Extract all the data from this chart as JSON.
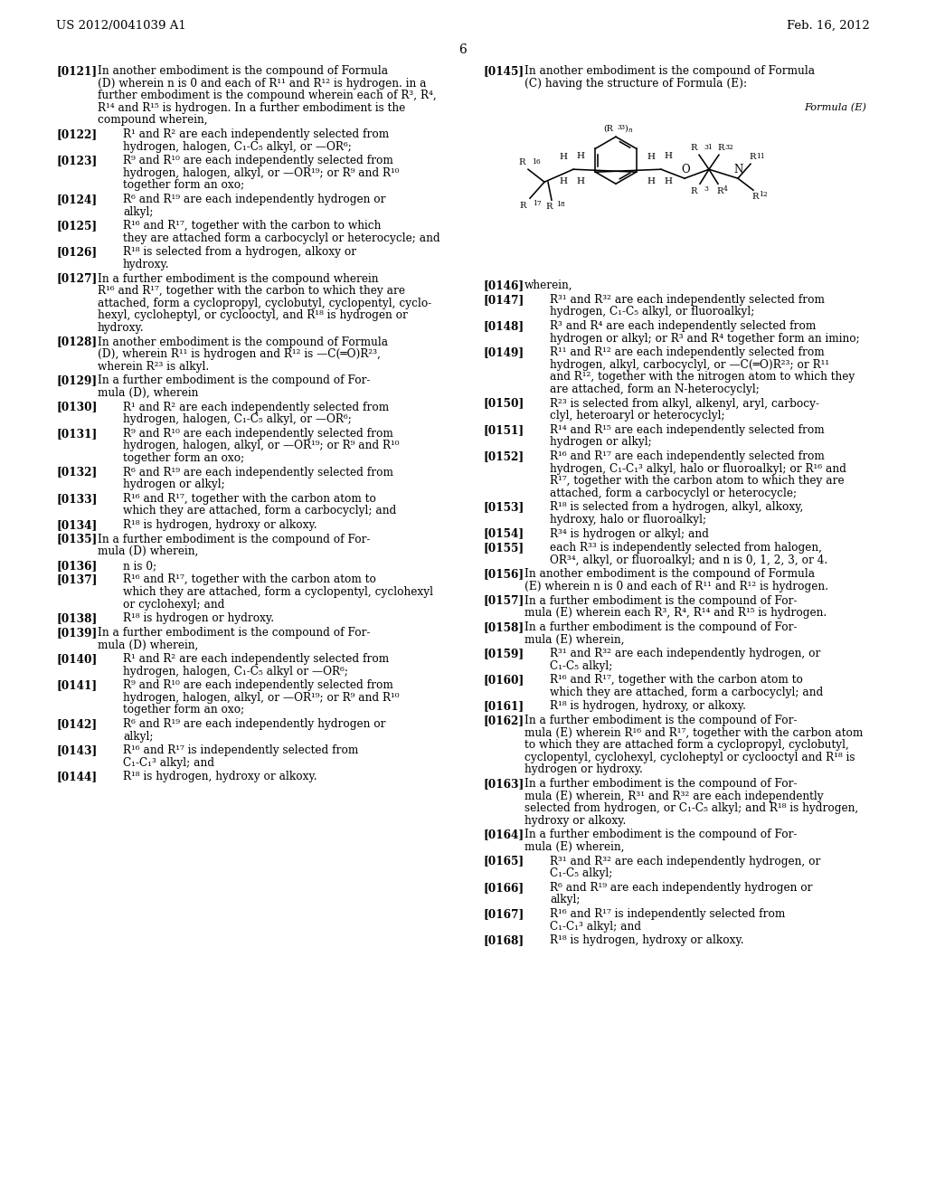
{
  "bg_color": "#ffffff",
  "header_left": "US 2012/0041039 A1",
  "header_right": "Feb. 16, 2012",
  "page_number": "6",
  "formula_label": "Formula (E)",
  "left_paragraphs": [
    {
      "tag": "[0121]",
      "indent": 0,
      "lines": [
        "In another embodiment is the compound of Formula",
        "(D) wherein n is 0 and each of R¹¹ and R¹² is hydrogen. in a",
        "further embodiment is the compound wherein each of R³, R⁴,",
        "R¹⁴ and R¹⁵ is hydrogen. In a further embodiment is the",
        "compound wherein,"
      ]
    },
    {
      "tag": "[0122]",
      "indent": 1,
      "lines": [
        "R¹ and R² are each independently selected from",
        "hydrogen, halogen, C₁-C₅ alkyl, or —OR⁶;"
      ]
    },
    {
      "tag": "[0123]",
      "indent": 1,
      "lines": [
        "R⁹ and R¹⁰ are each independently selected from",
        "hydrogen, halogen, alkyl, or —OR¹⁹; or R⁹ and R¹⁰",
        "together form an oxo;"
      ]
    },
    {
      "tag": "[0124]",
      "indent": 1,
      "lines": [
        "R⁶ and R¹⁹ are each independently hydrogen or",
        "alkyl;"
      ]
    },
    {
      "tag": "[0125]",
      "indent": 1,
      "lines": [
        "R¹⁶ and R¹⁷, together with the carbon to which",
        "they are attached form a carbocyclyl or heterocycle; and"
      ]
    },
    {
      "tag": "[0126]",
      "indent": 1,
      "lines": [
        "R¹⁸ is selected from a hydrogen, alkoxy or",
        "hydroxy."
      ]
    },
    {
      "tag": "[0127]",
      "indent": 0,
      "lines": [
        "In a further embodiment is the compound wherein",
        "R¹⁶ and R¹⁷, together with the carbon to which they are",
        "attached, form a cyclopropyl, cyclobutyl, cyclopentyl, cyclo-",
        "hexyl, cycloheptyl, or cyclooctyl, and R¹⁸ is hydrogen or",
        "hydroxy."
      ]
    },
    {
      "tag": "[0128]",
      "indent": 0,
      "lines": [
        "In another embodiment is the compound of Formula",
        "(D), wherein R¹¹ is hydrogen and R¹² is —C(═O)R²³,",
        "wherein R²³ is alkyl."
      ]
    },
    {
      "tag": "[0129]",
      "indent": 0,
      "lines": [
        "In a further embodiment is the compound of For-",
        "mula (D), wherein"
      ]
    },
    {
      "tag": "[0130]",
      "indent": 1,
      "lines": [
        "R¹ and R² are each independently selected from",
        "hydrogen, halogen, C₁-C₅ alkyl, or —OR⁶;"
      ]
    },
    {
      "tag": "[0131]",
      "indent": 1,
      "lines": [
        "R⁹ and R¹⁰ are each independently selected from",
        "hydrogen, halogen, alkyl, or —OR¹⁹; or R⁹ and R¹⁰",
        "together form an oxo;"
      ]
    },
    {
      "tag": "[0132]",
      "indent": 1,
      "lines": [
        "R⁶ and R¹⁹ are each independently selected from",
        "hydrogen or alkyl;"
      ]
    },
    {
      "tag": "[0133]",
      "indent": 1,
      "lines": [
        "R¹⁶ and R¹⁷, together with the carbon atom to",
        "which they are attached, form a carbocyclyl; and"
      ]
    },
    {
      "tag": "[0134]",
      "indent": 1,
      "lines": [
        "R¹⁸ is hydrogen, hydroxy or alkoxy."
      ]
    },
    {
      "tag": "[0135]",
      "indent": 0,
      "lines": [
        "In a further embodiment is the compound of For-",
        "mula (D) wherein,"
      ]
    },
    {
      "tag": "[0136]",
      "indent": 1,
      "lines": [
        "n is 0;"
      ]
    },
    {
      "tag": "[0137]",
      "indent": 1,
      "lines": [
        "R¹⁶ and R¹⁷, together with the carbon atom to",
        "which they are attached, form a cyclopentyl, cyclohexyl",
        "or cyclohexyl; and"
      ]
    },
    {
      "tag": "[0138]",
      "indent": 1,
      "lines": [
        "R¹⁸ is hydrogen or hydroxy."
      ]
    },
    {
      "tag": "[0139]",
      "indent": 0,
      "lines": [
        "In a further embodiment is the compound of For-",
        "mula (D) wherein,"
      ]
    },
    {
      "tag": "[0140]",
      "indent": 1,
      "lines": [
        "R¹ and R² are each independently selected from",
        "hydrogen, halogen, C₁-C₅ alkyl or —OR⁶;"
      ]
    },
    {
      "tag": "[0141]",
      "indent": 1,
      "lines": [
        "R⁹ and R¹⁰ are each independently selected from",
        "hydrogen, halogen, alkyl, or —OR¹⁹; or R⁹ and R¹⁰",
        "together form an oxo;"
      ]
    },
    {
      "tag": "[0142]",
      "indent": 1,
      "lines": [
        "R⁶ and R¹⁹ are each independently hydrogen or",
        "alkyl;"
      ]
    },
    {
      "tag": "[0143]",
      "indent": 1,
      "lines": [
        "R¹⁶ and R¹⁷ is independently selected from",
        "C₁-C₁³ alkyl; and"
      ]
    },
    {
      "tag": "[0144]",
      "indent": 1,
      "lines": [
        "R¹⁸ is hydrogen, hydroxy or alkoxy."
      ]
    }
  ],
  "right_paragraphs": [
    {
      "tag": "[0145]",
      "indent": 0,
      "lines": [
        "In another embodiment is the compound of Formula",
        "(C) having the structure of Formula (E):"
      ]
    },
    {
      "tag": "[0146]",
      "indent": 0,
      "lines": [
        "wherein,"
      ]
    },
    {
      "tag": "[0147]",
      "indent": 1,
      "lines": [
        "R³¹ and R³² are each independently selected from",
        "hydrogen, C₁-C₅ alkyl, or fluoroalkyl;"
      ]
    },
    {
      "tag": "[0148]",
      "indent": 1,
      "lines": [
        "R³ and R⁴ are each independently selected from",
        "hydrogen or alkyl; or R³ and R⁴ together form an imino;"
      ]
    },
    {
      "tag": "[0149]",
      "indent": 1,
      "lines": [
        "R¹¹ and R¹² are each independently selected from",
        "hydrogen, alkyl, carbocyclyl, or —C(═O)R²³; or R¹¹",
        "and R¹², together with the nitrogen atom to which they",
        "are attached, form an N-heterocyclyl;"
      ]
    },
    {
      "tag": "[0150]",
      "indent": 1,
      "lines": [
        "R²³ is selected from alkyl, alkenyl, aryl, carbocy-",
        "clyl, heteroaryl or heterocyclyl;"
      ]
    },
    {
      "tag": "[0151]",
      "indent": 1,
      "lines": [
        "R¹⁴ and R¹⁵ are each independently selected from",
        "hydrogen or alkyl;"
      ]
    },
    {
      "tag": "[0152]",
      "indent": 1,
      "lines": [
        "R¹⁶ and R¹⁷ are each independently selected from",
        "hydrogen, C₁-C₁³ alkyl, halo or fluoroalkyl; or R¹⁶ and",
        "R¹⁷, together with the carbon atom to which they are",
        "attached, form a carbocyclyl or heterocycle;"
      ]
    },
    {
      "tag": "[0153]",
      "indent": 1,
      "lines": [
        "R¹⁸ is selected from a hydrogen, alkyl, alkoxy,",
        "hydroxy, halo or fluoroalkyl;"
      ]
    },
    {
      "tag": "[0154]",
      "indent": 1,
      "lines": [
        "R³⁴ is hydrogen or alkyl; and"
      ]
    },
    {
      "tag": "[0155]",
      "indent": 1,
      "lines": [
        "each R³³ is independently selected from halogen,",
        "OR³⁴, alkyl, or fluoroalkyl; and n is 0, 1, 2, 3, or 4."
      ]
    },
    {
      "tag": "[0156]",
      "indent": 0,
      "lines": [
        "In another embodiment is the compound of Formula",
        "(E) wherein n is 0 and each of R¹¹ and R¹² is hydrogen."
      ]
    },
    {
      "tag": "[0157]",
      "indent": 0,
      "lines": [
        "In a further embodiment is the compound of For-",
        "mula (E) wherein each R³, R⁴, R¹⁴ and R¹⁵ is hydrogen."
      ]
    },
    {
      "tag": "[0158]",
      "indent": 0,
      "lines": [
        "In a further embodiment is the compound of For-",
        "mula (E) wherein,"
      ]
    },
    {
      "tag": "[0159]",
      "indent": 1,
      "lines": [
        "R³¹ and R³² are each independently hydrogen, or",
        "C₁-C₅ alkyl;"
      ]
    },
    {
      "tag": "[0160]",
      "indent": 1,
      "lines": [
        "R¹⁶ and R¹⁷, together with the carbon atom to",
        "which they are attached, form a carbocyclyl; and"
      ]
    },
    {
      "tag": "[0161]",
      "indent": 1,
      "lines": [
        "R¹⁸ is hydrogen, hydroxy, or alkoxy."
      ]
    },
    {
      "tag": "[0162]",
      "indent": 0,
      "lines": [
        "In a further embodiment is the compound of For-",
        "mula (E) wherein R¹⁶ and R¹⁷, together with the carbon atom",
        "to which they are attached form a cyclopropyl, cyclobutyl,",
        "cyclopentyl, cyclohexyl, cycloheptyl or cyclooctyl and R¹⁸ is",
        "hydrogen or hydroxy."
      ]
    },
    {
      "tag": "[0163]",
      "indent": 0,
      "lines": [
        "In a further embodiment is the compound of For-",
        "mula (E) wherein, R³¹ and R³² are each independently",
        "selected from hydrogen, or C₁-C₅ alkyl; and R¹⁸ is hydrogen,",
        "hydroxy or alkoxy."
      ]
    },
    {
      "tag": "[0164]",
      "indent": 0,
      "lines": [
        "In a further embodiment is the compound of For-",
        "mula (E) wherein,"
      ]
    },
    {
      "tag": "[0165]",
      "indent": 1,
      "lines": [
        "R³¹ and R³² are each independently hydrogen, or",
        "C₁-C₅ alkyl;"
      ]
    },
    {
      "tag": "[0166]",
      "indent": 1,
      "lines": [
        "R⁶ and R¹⁹ are each independently hydrogen or",
        "alkyl;"
      ]
    },
    {
      "tag": "[0167]",
      "indent": 1,
      "lines": [
        "R¹⁶ and R¹⁷ is independently selected from",
        "C₁-C₁³ alkyl; and"
      ]
    },
    {
      "tag": "[0168]",
      "indent": 1,
      "lines": [
        "R¹⁸ is hydrogen, hydroxy or alkoxy."
      ]
    }
  ]
}
